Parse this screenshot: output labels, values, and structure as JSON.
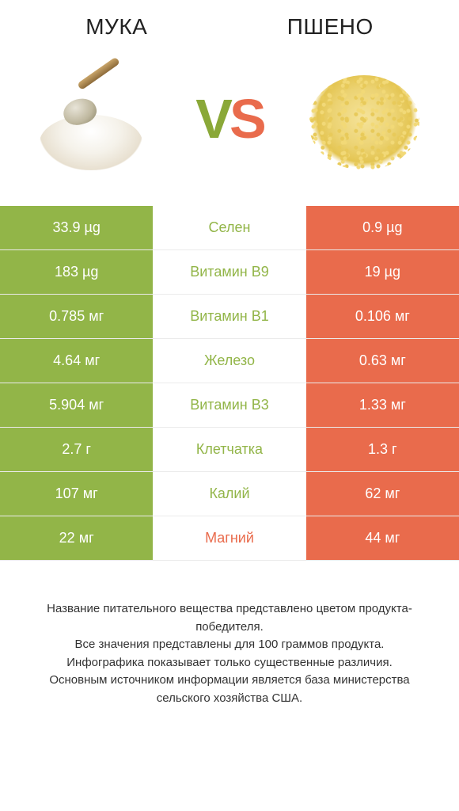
{
  "colors": {
    "left": "#92b548",
    "right": "#e96b4c",
    "mid_bg": "#ffffff",
    "text": "#333333",
    "white": "#ffffff"
  },
  "fonts": {
    "title_size": 28,
    "vs_size": 70,
    "cell_size": 18,
    "footer_size": 15
  },
  "header": {
    "left_title": "МУКА",
    "right_title": "ПШЕНО"
  },
  "vs": {
    "v": "V",
    "s": "S"
  },
  "rows": [
    {
      "left": "33.9 µg",
      "label": "Селен",
      "right": "0.9 µg",
      "winner": "left"
    },
    {
      "left": "183 µg",
      "label": "Витамин B9",
      "right": "19 µg",
      "winner": "left"
    },
    {
      "left": "0.785 мг",
      "label": "Витамин B1",
      "right": "0.106 мг",
      "winner": "left"
    },
    {
      "left": "4.64 мг",
      "label": "Железо",
      "right": "0.63 мг",
      "winner": "left"
    },
    {
      "left": "5.904 мг",
      "label": "Витамин B3",
      "right": "1.33 мг",
      "winner": "left"
    },
    {
      "left": "2.7 г",
      "label": "Клетчатка",
      "right": "1.3 г",
      "winner": "left"
    },
    {
      "left": "107 мг",
      "label": "Калий",
      "right": "62 мг",
      "winner": "left"
    },
    {
      "left": "22 мг",
      "label": "Магний",
      "right": "44 мг",
      "winner": "right"
    }
  ],
  "footer": {
    "line1": "Название питательного вещества представлено цветом продукта-победителя.",
    "line2": "Все значения представлены для 100 граммов продукта.",
    "line3": "Инфографика показывает только существенные различия.",
    "line4": "Основным источником информации является база министерства сельского хозяйства США."
  }
}
